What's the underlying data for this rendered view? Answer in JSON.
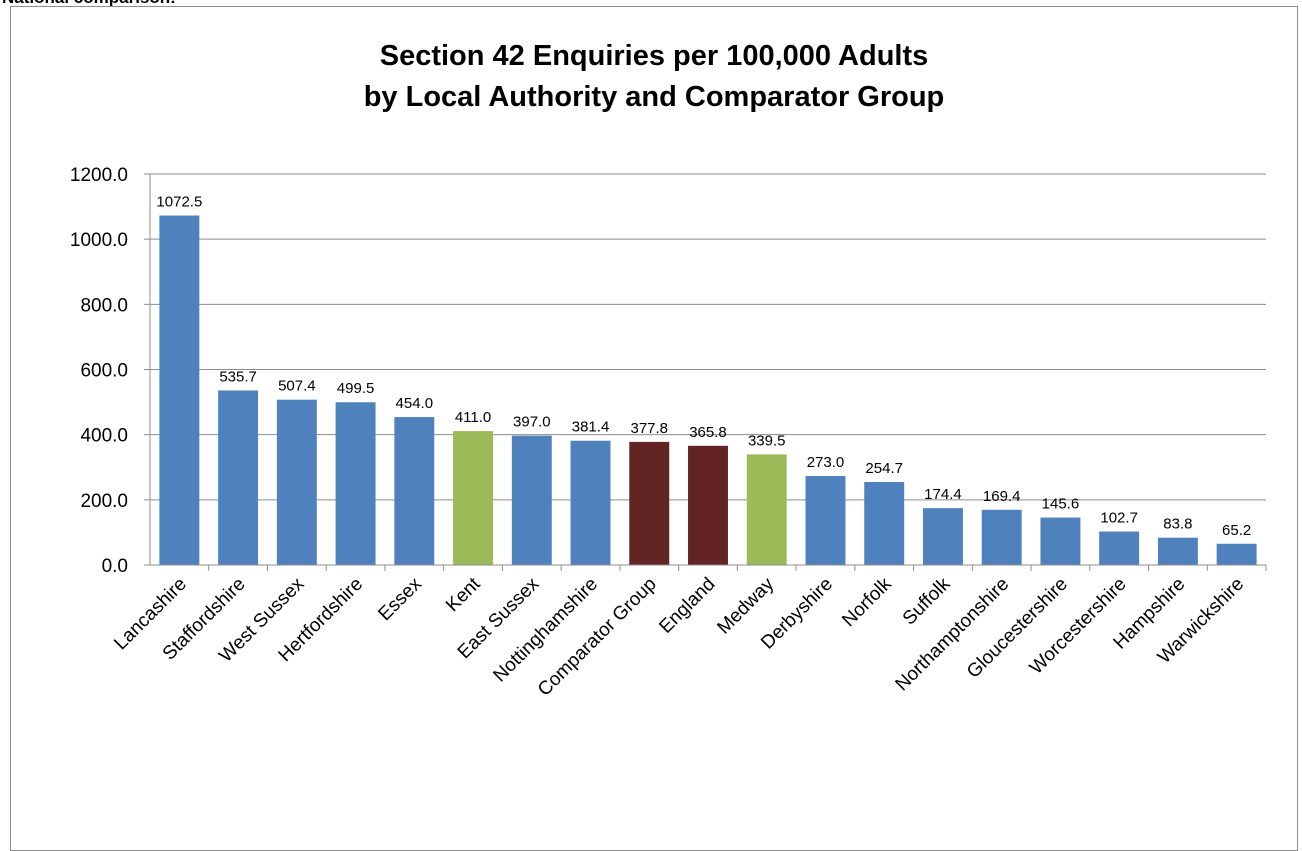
{
  "page": {
    "heading": "National comparison:"
  },
  "colors": {
    "local_authority": "#4f81bd",
    "highlighted_authority": "#9bbb59",
    "comparator": "#632523",
    "gridline": "#8c8c8c"
  },
  "chart_data": {
    "type": "bar",
    "title": "Section 42 Enquiries per 100,000 Adults",
    "subtitle": "by Local Authority and Comparator Group",
    "xlabel": "",
    "ylabel": "",
    "ylim": [
      0,
      1200
    ],
    "yticks": [
      "0.0",
      "200.0",
      "400.0",
      "600.0",
      "800.0",
      "1000.0",
      "1200.0"
    ],
    "grid": true,
    "legend": "none",
    "categories": [
      "Lancashire",
      "Staffordshire",
      "West Sussex",
      "Hertfordshire",
      "Essex",
      "Kent",
      "East Sussex",
      "Nottinghamshire",
      "Comparator Group",
      "England",
      "Medway",
      "Derbyshire",
      "Norfolk",
      "Suffolk",
      "Northamptonshire",
      "Gloucestershire",
      "Worcestershire",
      "Hampshire",
      "Warwickshire"
    ],
    "values": [
      1072.5,
      535.7,
      507.4,
      499.5,
      454.0,
      411.0,
      397.0,
      381.4,
      377.8,
      365.8,
      339.5,
      273.0,
      254.7,
      174.4,
      169.4,
      145.6,
      102.7,
      83.8,
      65.2
    ],
    "data_labels": [
      "1072.5",
      "535.7",
      "507.4",
      "499.5",
      "454.0",
      "411.0",
      "397.0",
      "381.4",
      "377.8",
      "365.8",
      "339.5",
      "273.0",
      "254.7",
      "174.4",
      "169.4",
      "145.6",
      "102.7",
      "83.8",
      "65.2"
    ],
    "bar_colors": [
      "#4f81bd",
      "#4f81bd",
      "#4f81bd",
      "#4f81bd",
      "#4f81bd",
      "#9bbb59",
      "#4f81bd",
      "#4f81bd",
      "#632523",
      "#632523",
      "#9bbb59",
      "#4f81bd",
      "#4f81bd",
      "#4f81bd",
      "#4f81bd",
      "#4f81bd",
      "#4f81bd",
      "#4f81bd",
      "#4f81bd"
    ]
  }
}
